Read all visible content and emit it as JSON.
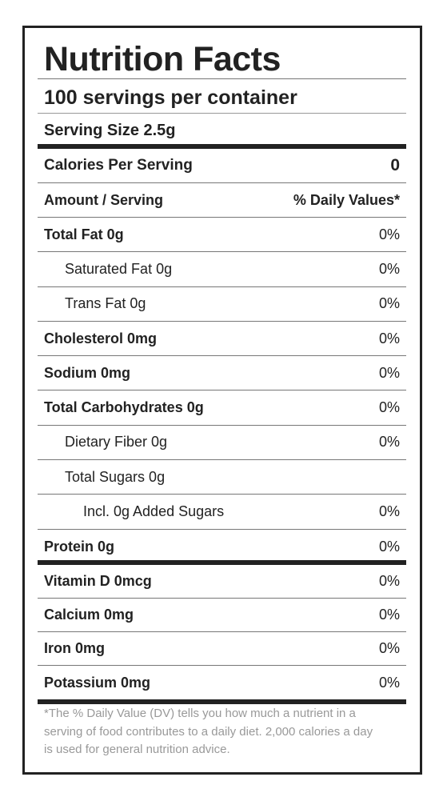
{
  "header": {
    "title": "Nutrition Facts",
    "servings": "100 servings per container",
    "serving_size": "Serving Size 2.5g"
  },
  "calories": {
    "label": "Calories Per Serving",
    "value": 0
  },
  "columns": {
    "amount": "Amount / Serving",
    "daily": "% Daily Values*"
  },
  "nutrients": [
    {
      "name": "Total Fat 0g",
      "dv": "0%"
    },
    {
      "name": "Saturated Fat 0g",
      "dv": "0%"
    },
    {
      "name": "Trans Fat 0g",
      "dv": "0%"
    },
    {
      "name": "Cholesterol 0mg",
      "dv": "0%"
    },
    {
      "name": "Sodium 0mg",
      "dv": "0%"
    },
    {
      "name": "Total Carbohydrates 0g",
      "dv": "0%"
    },
    {
      "name": "Dietary Fiber 0g",
      "dv": "0%"
    },
    {
      "name": "Total Sugars 0g"
    },
    {
      "name": "Incl. 0g Added Sugars",
      "dv": "0%"
    },
    {
      "name": "Protein 0g",
      "dv": "0%"
    }
  ],
  "vitamins": [
    {
      "name": "Vitamin D 0mcg",
      "dv": "0%"
    },
    {
      "name": "Calcium 0mg",
      "dv": "0%"
    },
    {
      "name": "Iron 0mg",
      "dv": "0%"
    },
    {
      "name": "Potassium 0mg",
      "dv": "0%"
    }
  ],
  "footnote": [
    "*The % Daily Value (DV) tells you how much a nutrient in a",
    "serving of food contributes to a daily diet. 2,000 calories a day",
    "is used for general nutrition advice."
  ]
}
